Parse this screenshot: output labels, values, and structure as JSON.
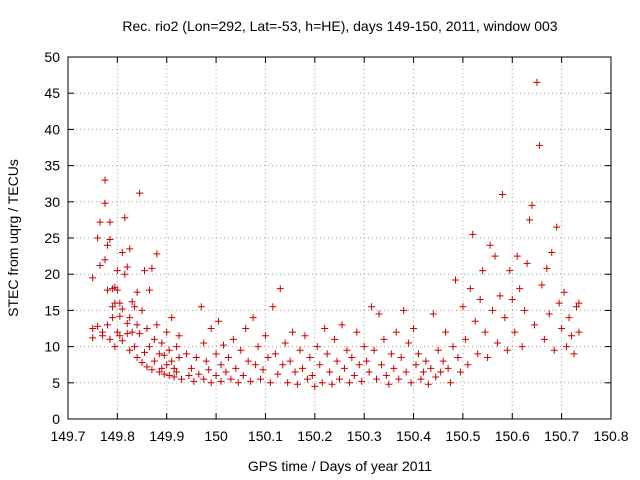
{
  "chart_data": {
    "type": "scatter",
    "title": "Rec. rio2 (Lon=292, Lat=-53, h=HE), days 149-150, 2011, window 003",
    "xlabel": "GPS time / Days of year 2011",
    "ylabel": "STEC from uqrg / TECUs",
    "xlim": [
      149.7,
      150.8
    ],
    "ylim": [
      0,
      50
    ],
    "xticks": [
      "149.7",
      "149.8",
      "149.9",
      "150",
      "150.1",
      "150.2",
      "150.3",
      "150.4",
      "150.5",
      "150.6",
      "150.7",
      "150.8"
    ],
    "yticks": [
      "0",
      "5",
      "10",
      "15",
      "20",
      "25",
      "30",
      "35",
      "40",
      "45",
      "50"
    ],
    "grid": true,
    "marker": "+",
    "color": "#cc0000",
    "points": [
      [
        149.75,
        19.5
      ],
      [
        149.75,
        12.5
      ],
      [
        149.75,
        11.2
      ],
      [
        149.76,
        12.8
      ],
      [
        149.76,
        25.0
      ],
      [
        149.765,
        27.2
      ],
      [
        149.765,
        21.2
      ],
      [
        149.77,
        12.0
      ],
      [
        149.77,
        11.5
      ],
      [
        149.775,
        33.0
      ],
      [
        149.775,
        29.8
      ],
      [
        149.775,
        22.0
      ],
      [
        149.78,
        24.0
      ],
      [
        149.78,
        17.8
      ],
      [
        149.78,
        13.0
      ],
      [
        149.785,
        27.2
      ],
      [
        149.785,
        24.8
      ],
      [
        149.785,
        11.0
      ],
      [
        149.79,
        18.0
      ],
      [
        149.79,
        15.5
      ],
      [
        149.79,
        14.0
      ],
      [
        149.795,
        18.2
      ],
      [
        149.795,
        16.0
      ],
      [
        149.795,
        10.0
      ],
      [
        149.8,
        20.5
      ],
      [
        149.8,
        17.8
      ],
      [
        149.8,
        12.0
      ],
      [
        149.805,
        16.0
      ],
      [
        149.805,
        14.2
      ],
      [
        149.805,
        11.5
      ],
      [
        149.81,
        23.0
      ],
      [
        149.81,
        15.2
      ],
      [
        149.81,
        10.8
      ],
      [
        149.815,
        20.0
      ],
      [
        149.815,
        27.8
      ],
      [
        149.82,
        21.0
      ],
      [
        149.82,
        13.2
      ],
      [
        149.82,
        11.8
      ],
      [
        149.825,
        23.5
      ],
      [
        149.825,
        14.0
      ],
      [
        149.825,
        9.5
      ],
      [
        149.83,
        16.2
      ],
      [
        149.83,
        12.0
      ],
      [
        149.835,
        15.5
      ],
      [
        149.835,
        10.0
      ],
      [
        149.84,
        17.5
      ],
      [
        149.84,
        13.0
      ],
      [
        149.84,
        8.5
      ],
      [
        149.845,
        31.2
      ],
      [
        149.845,
        11.8
      ],
      [
        149.85,
        15.0
      ],
      [
        149.85,
        7.8
      ],
      [
        149.855,
        20.5
      ],
      [
        149.855,
        9.2
      ],
      [
        149.86,
        12.5
      ],
      [
        149.86,
        7.2
      ],
      [
        149.865,
        17.8
      ],
      [
        149.865,
        10.0
      ],
      [
        149.87,
        20.8
      ],
      [
        149.87,
        6.8
      ],
      [
        149.875,
        11.0
      ],
      [
        149.875,
        8.0
      ],
      [
        149.88,
        22.8
      ],
      [
        149.88,
        13.0
      ],
      [
        149.885,
        9.0
      ],
      [
        149.885,
        6.5
      ],
      [
        149.89,
        10.5
      ],
      [
        149.89,
        7.0
      ],
      [
        149.895,
        8.8
      ],
      [
        149.895,
        6.2
      ],
      [
        149.9,
        12.0
      ],
      [
        149.9,
        7.5
      ],
      [
        149.905,
        9.5
      ],
      [
        149.905,
        6.0
      ],
      [
        149.91,
        14.0
      ],
      [
        149.91,
        8.0
      ],
      [
        149.915,
        7.0
      ],
      [
        149.915,
        5.8
      ],
      [
        149.92,
        10.0
      ],
      [
        149.92,
        6.5
      ],
      [
        149.925,
        11.5
      ],
      [
        149.925,
        8.5
      ],
      [
        149.93,
        5.5
      ],
      [
        149.94,
        9.0
      ],
      [
        149.945,
        6.0
      ],
      [
        149.95,
        7.0
      ],
      [
        149.955,
        5.2
      ],
      [
        149.96,
        8.5
      ],
      [
        149.965,
        6.2
      ],
      [
        149.97,
        15.5
      ],
      [
        149.975,
        10.5
      ],
      [
        149.975,
        5.5
      ],
      [
        149.98,
        8.0
      ],
      [
        149.985,
        6.8
      ],
      [
        149.99,
        12.5
      ],
      [
        149.99,
        5.0
      ],
      [
        150.0,
        9.0
      ],
      [
        150.0,
        6.0
      ],
      [
        150.005,
        13.5
      ],
      [
        150.01,
        7.5
      ],
      [
        150.01,
        5.2
      ],
      [
        150.015,
        10.2
      ],
      [
        150.02,
        6.5
      ],
      [
        150.025,
        8.5
      ],
      [
        150.03,
        5.5
      ],
      [
        150.035,
        11.0
      ],
      [
        150.04,
        7.0
      ],
      [
        150.045,
        5.0
      ],
      [
        150.05,
        9.5
      ],
      [
        150.055,
        6.0
      ],
      [
        150.06,
        12.5
      ],
      [
        150.065,
        8.0
      ],
      [
        150.07,
        5.2
      ],
      [
        150.075,
        14.0
      ],
      [
        150.08,
        7.5
      ],
      [
        150.085,
        10.0
      ],
      [
        150.09,
        5.5
      ],
      [
        150.095,
        6.8
      ],
      [
        150.1,
        11.5
      ],
      [
        150.105,
        8.5
      ],
      [
        150.11,
        5.0
      ],
      [
        150.115,
        15.5
      ],
      [
        150.12,
        9.0
      ],
      [
        150.125,
        6.2
      ],
      [
        150.13,
        18.0
      ],
      [
        150.135,
        7.5
      ],
      [
        150.14,
        10.5
      ],
      [
        150.145,
        5.0
      ],
      [
        150.15,
        8.0
      ],
      [
        150.155,
        12.0
      ],
      [
        150.16,
        6.5
      ],
      [
        150.165,
        4.8
      ],
      [
        150.17,
        9.5
      ],
      [
        150.175,
        7.0
      ],
      [
        150.18,
        11.5
      ],
      [
        150.185,
        5.5
      ],
      [
        150.19,
        8.5
      ],
      [
        150.195,
        6.0
      ],
      [
        150.2,
        4.5
      ],
      [
        150.205,
        10.0
      ],
      [
        150.21,
        7.5
      ],
      [
        150.215,
        5.0
      ],
      [
        150.22,
        12.5
      ],
      [
        150.225,
        9.0
      ],
      [
        150.23,
        6.5
      ],
      [
        150.235,
        4.8
      ],
      [
        150.24,
        11.0
      ],
      [
        150.245,
        8.0
      ],
      [
        150.25,
        5.5
      ],
      [
        150.255,
        13.0
      ],
      [
        150.26,
        7.0
      ],
      [
        150.265,
        9.5
      ],
      [
        150.27,
        5.0
      ],
      [
        150.275,
        8.5
      ],
      [
        150.28,
        6.0
      ],
      [
        150.285,
        12.0
      ],
      [
        150.29,
        7.5
      ],
      [
        150.295,
        5.2
      ],
      [
        150.3,
        10.0
      ],
      [
        150.305,
        8.0
      ],
      [
        150.31,
        6.5
      ],
      [
        150.315,
        15.5
      ],
      [
        150.32,
        9.5
      ],
      [
        150.325,
        5.5
      ],
      [
        150.33,
        14.5
      ],
      [
        150.335,
        7.5
      ],
      [
        150.34,
        11.0
      ],
      [
        150.345,
        6.0
      ],
      [
        150.35,
        4.8
      ],
      [
        150.355,
        9.0
      ],
      [
        150.36,
        7.0
      ],
      [
        150.365,
        12.0
      ],
      [
        150.37,
        5.5
      ],
      [
        150.375,
        8.5
      ],
      [
        150.38,
        15.0
      ],
      [
        150.385,
        6.5
      ],
      [
        150.39,
        10.5
      ],
      [
        150.395,
        5.0
      ],
      [
        150.4,
        12.5
      ],
      [
        150.405,
        7.5
      ],
      [
        150.41,
        9.0
      ],
      [
        150.415,
        5.5
      ],
      [
        150.42,
        6.5
      ],
      [
        150.425,
        8.0
      ],
      [
        150.43,
        4.8
      ],
      [
        150.435,
        7.0
      ],
      [
        150.44,
        14.5
      ],
      [
        150.445,
        5.8
      ],
      [
        150.45,
        9.5
      ],
      [
        150.455,
        6.5
      ],
      [
        150.46,
        8.0
      ],
      [
        150.465,
        12.0
      ],
      [
        150.47,
        7.0
      ],
      [
        150.475,
        5.0
      ],
      [
        150.48,
        10.0
      ],
      [
        150.485,
        19.2
      ],
      [
        150.49,
        8.5
      ],
      [
        150.495,
        6.5
      ],
      [
        150.5,
        15.5
      ],
      [
        150.505,
        11.0
      ],
      [
        150.51,
        7.5
      ],
      [
        150.515,
        18.0
      ],
      [
        150.52,
        25.5
      ],
      [
        150.525,
        13.5
      ],
      [
        150.53,
        9.0
      ],
      [
        150.535,
        16.5
      ],
      [
        150.54,
        20.5
      ],
      [
        150.545,
        12.0
      ],
      [
        150.55,
        8.5
      ],
      [
        150.555,
        24.0
      ],
      [
        150.56,
        15.0
      ],
      [
        150.565,
        22.5
      ],
      [
        150.57,
        10.5
      ],
      [
        150.575,
        17.0
      ],
      [
        150.58,
        31.0
      ],
      [
        150.585,
        14.0
      ],
      [
        150.59,
        9.5
      ],
      [
        150.595,
        20.5
      ],
      [
        150.6,
        16.5
      ],
      [
        150.605,
        12.0
      ],
      [
        150.61,
        22.5
      ],
      [
        150.615,
        18.0
      ],
      [
        150.62,
        10.0
      ],
      [
        150.625,
        15.0
      ],
      [
        150.63,
        21.5
      ],
      [
        150.635,
        27.5
      ],
      [
        150.64,
        29.5
      ],
      [
        150.645,
        13.0
      ],
      [
        150.65,
        46.5
      ],
      [
        150.655,
        37.8
      ],
      [
        150.66,
        18.5
      ],
      [
        150.665,
        11.0
      ],
      [
        150.67,
        20.8
      ],
      [
        150.675,
        14.5
      ],
      [
        150.68,
        23.0
      ],
      [
        150.685,
        9.5
      ],
      [
        150.69,
        26.5
      ],
      [
        150.695,
        16.0
      ],
      [
        150.7,
        12.5
      ],
      [
        150.705,
        17.5
      ],
      [
        150.71,
        10.0
      ],
      [
        150.715,
        14.0
      ],
      [
        150.72,
        11.5
      ],
      [
        150.725,
        9.0
      ],
      [
        150.73,
        15.5
      ],
      [
        150.735,
        12.0
      ],
      [
        150.735,
        16.0
      ]
    ]
  }
}
